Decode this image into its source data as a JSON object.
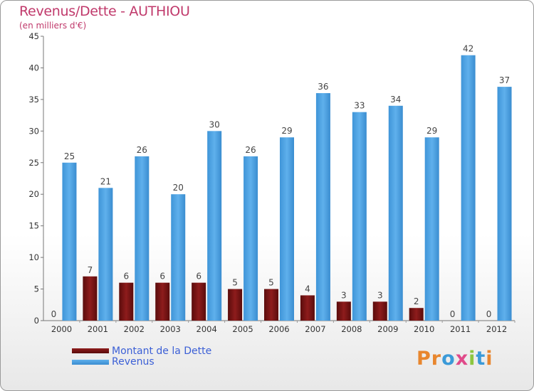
{
  "title": "Revenus/Dette - AUTHIOU",
  "subtitle": "(en milliers d'€)",
  "colors": {
    "dette": "#7a1414",
    "revenus": "#4a9fe0",
    "title": "#c0396b",
    "legend_text": "#3b5fd6"
  },
  "logo": {
    "text": "Proxiti"
  },
  "chart_data": {
    "type": "bar",
    "title": "Revenus/Dette - AUTHIOU",
    "ylabel": "(en milliers d'€)",
    "ylim": [
      0,
      45
    ],
    "yticks": [
      0,
      5,
      10,
      15,
      20,
      25,
      30,
      35,
      40,
      45
    ],
    "categories": [
      "2000",
      "2001",
      "2002",
      "2003",
      "2004",
      "2005",
      "2006",
      "2007",
      "2008",
      "2009",
      "2010",
      "2011",
      "2012"
    ],
    "series": [
      {
        "name": "Montant de la Dette",
        "values": [
          0,
          7,
          6,
          6,
          6,
          5,
          5,
          4,
          3,
          3,
          2,
          0,
          0
        ]
      },
      {
        "name": "Revenus",
        "values": [
          25,
          21,
          26,
          20,
          30,
          26,
          29,
          36,
          33,
          34,
          29,
          42,
          37
        ]
      }
    ],
    "legend": "bottom-left"
  }
}
